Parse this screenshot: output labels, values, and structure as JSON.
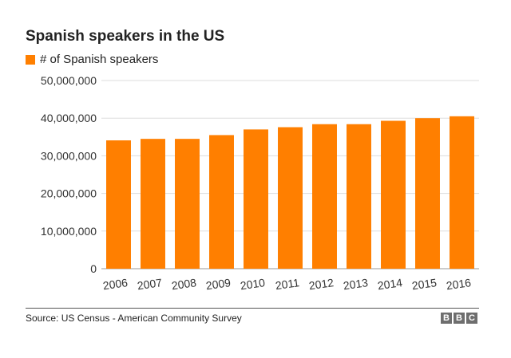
{
  "chart_data": {
    "type": "bar",
    "title": "Spanish speakers in the US",
    "xlabel": "",
    "ylabel": "",
    "categories": [
      "2006",
      "2007",
      "2008",
      "2009",
      "2010",
      "2011",
      "2012",
      "2013",
      "2014",
      "2015",
      "2016"
    ],
    "series": [
      {
        "name": "# of Spanish speakers",
        "values": [
          34100000,
          34500000,
          34500000,
          35500000,
          37000000,
          37600000,
          38400000,
          38400000,
          39300000,
          40000000,
          40500000
        ]
      }
    ],
    "ylim": [
      0,
      50000000
    ],
    "yticks": [
      0,
      10000000,
      20000000,
      30000000,
      40000000,
      50000000
    ],
    "ytick_labels": [
      "0",
      "10,000,000",
      "20,000,000",
      "30,000,000",
      "40,000,000",
      "50,000,000"
    ],
    "grid": true,
    "legend_position": "top-left",
    "bar_color": "#FF7F00",
    "grid_color": "#dddddd"
  },
  "footer": {
    "source": "Source: US Census - American Community Survey",
    "logo": [
      "B",
      "B",
      "C"
    ]
  }
}
